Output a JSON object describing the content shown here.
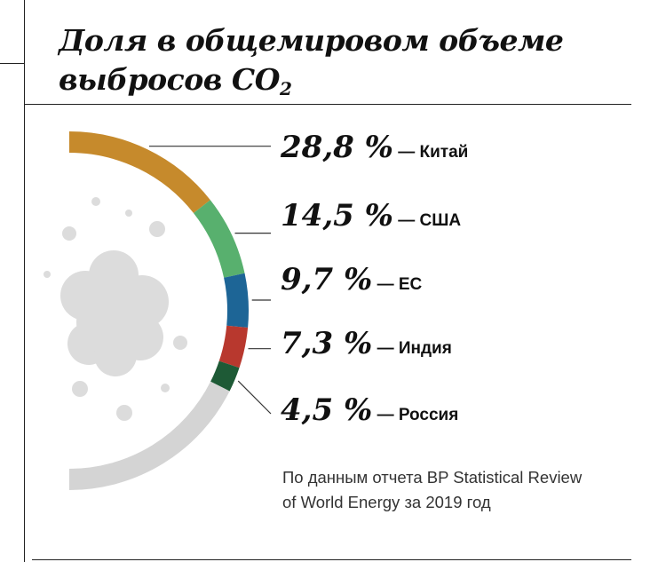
{
  "title": {
    "line1": "Доля в общемировом объеме",
    "line2_main": "выбросов CO",
    "line2_sub": "2"
  },
  "source_line1": "По данным отчета BP Statistical Review",
  "source_line2": "of World Energy за 2019 год",
  "colors": {
    "remainder": "#d4d4d4",
    "cloud": "#dcdcdc"
  },
  "chart_data": {
    "type": "pie",
    "title": "Доля в общемировом объеме выбросов CO2",
    "unit": "%",
    "slices": [
      {
        "label": "Китай",
        "value": 28.8,
        "display": "28,8 %",
        "color": "#c68a2c"
      },
      {
        "label": "США",
        "value": 14.5,
        "display": "14,5 %",
        "color": "#58b06e"
      },
      {
        "label": "ЕС",
        "value": 9.7,
        "display": "9,7 %",
        "color": "#1d6596"
      },
      {
        "label": "Индия",
        "value": 7.3,
        "display": "7,3 %",
        "color": "#b8382e"
      },
      {
        "label": "Россия",
        "value": 4.5,
        "display": "4,5 %",
        "color": "#1e5a36"
      }
    ]
  }
}
